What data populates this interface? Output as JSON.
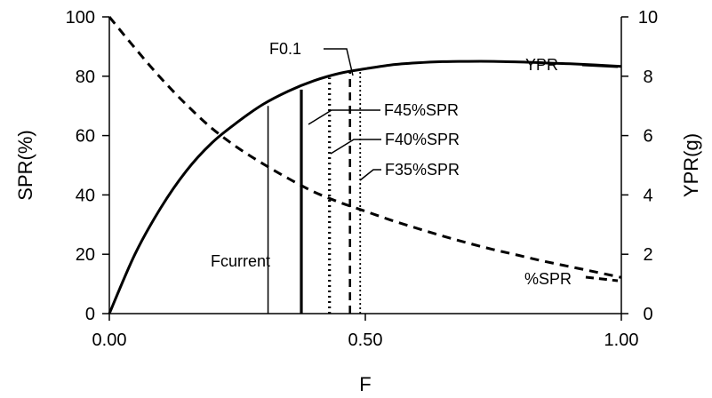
{
  "chart_data": {
    "type": "line",
    "title": "",
    "xlabel": "F",
    "ylabel_left": "SPR(%)",
    "ylabel_right": "YPR(g)",
    "xlim": [
      0,
      1
    ],
    "ylim_left": [
      0,
      100
    ],
    "ylim_right": [
      0,
      10
    ],
    "x_ticks": [
      {
        "value": 0,
        "label": "0.00"
      },
      {
        "value": 0.5,
        "label": "0.50"
      },
      {
        "value": 1,
        "label": "1.00"
      }
    ],
    "y_left_ticks": [
      {
        "value": 0,
        "label": "0"
      },
      {
        "value": 20,
        "label": "20"
      },
      {
        "value": 40,
        "label": "40"
      },
      {
        "value": 60,
        "label": "60"
      },
      {
        "value": 80,
        "label": "80"
      },
      {
        "value": 100,
        "label": "100"
      }
    ],
    "y_right_ticks": [
      {
        "value": 0,
        "label": "0"
      },
      {
        "value": 2,
        "label": "2"
      },
      {
        "value": 4,
        "label": "4"
      },
      {
        "value": 6,
        "label": "6"
      },
      {
        "value": 8,
        "label": "8"
      },
      {
        "value": 10,
        "label": "10"
      }
    ],
    "grid": false,
    "series": [
      {
        "name": "YPR",
        "axis": "right",
        "style": "solid",
        "x": [
          0,
          0.05,
          0.1,
          0.15,
          0.2,
          0.25,
          0.3,
          0.35,
          0.4,
          0.45,
          0.5,
          0.55,
          0.6,
          0.65,
          0.7,
          0.75,
          0.8,
          0.85,
          0.9,
          0.95,
          1.0
        ],
        "y": [
          0,
          2.0,
          3.55,
          4.8,
          5.75,
          6.45,
          7.05,
          7.5,
          7.85,
          8.1,
          8.25,
          8.38,
          8.45,
          8.49,
          8.5,
          8.5,
          8.48,
          8.45,
          8.42,
          8.38,
          8.33
        ]
      },
      {
        "name": "%SPR",
        "axis": "left",
        "style": "dashed",
        "x": [
          0,
          0.05,
          0.1,
          0.15,
          0.2,
          0.25,
          0.3,
          0.35,
          0.4,
          0.45,
          0.5,
          0.55,
          0.6,
          0.65,
          0.7,
          0.75,
          0.8,
          0.85,
          0.9,
          0.95,
          1.0
        ],
        "y": [
          100,
          89.5,
          79.5,
          70.5,
          62.5,
          56.0,
          50.5,
          45.5,
          41.0,
          37.5,
          34.5,
          31.5,
          28.8,
          26.2,
          23.8,
          21.6,
          19.6,
          17.6,
          15.8,
          14.0,
          12.2
        ]
      }
    ],
    "reference_lines": [
      {
        "name": "Fcurrent",
        "x": 0.31,
        "top_ypr": 7.0,
        "style": "solid-thin"
      },
      {
        "name": "F45%SPR",
        "x": 0.375,
        "top_ypr": 7.55,
        "style": "solid-thick"
      },
      {
        "name": "F40%SPR",
        "x": 0.43,
        "top_ypr": 7.95,
        "style": "dotted-thick"
      },
      {
        "name": "F0.1",
        "x": 0.47,
        "top_ypr": 8.15,
        "style": "dashed"
      },
      {
        "name": "F35%SPR",
        "x": 0.49,
        "top_ypr": 8.2,
        "style": "dotted-thin"
      }
    ],
    "annotations": [
      {
        "label": "YPR"
      },
      {
        "label": "%SPR"
      },
      {
        "label": "F0.1"
      },
      {
        "label": "F45%SPR"
      },
      {
        "label": "F40%SPR"
      },
      {
        "label": "F35%SPR"
      },
      {
        "label": "Fcurrent"
      }
    ]
  }
}
